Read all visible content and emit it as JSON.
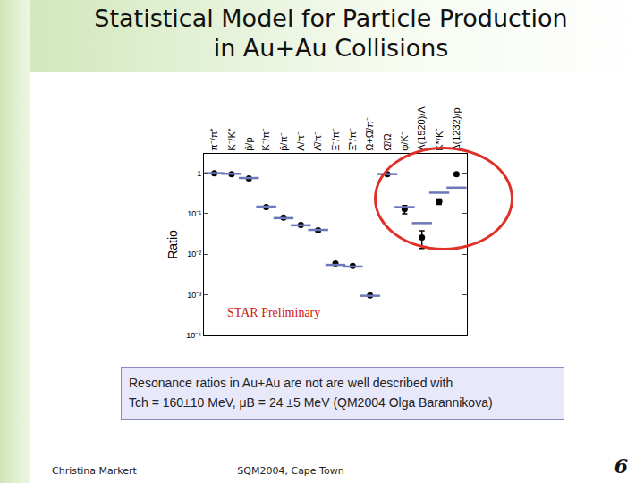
{
  "slide": {
    "title": [
      "Statistical Model for Particle Production",
      "in Au+Au Collisions"
    ],
    "caption": [
      "Resonance ratios in Au+Au  are not are well described with",
      "Tch = 160±10 MeV, μB = 24 ±5 MeV   (QM2004 Olga Barannikova)"
    ],
    "footer_left": "Christina Markert",
    "footer_center": "SQM2004, Cape Town",
    "page": 6
  },
  "chart_data": {
    "type": "scatter",
    "ylabel": "Ratio",
    "log": "y",
    "categories": [
      "π⁻/π⁺",
      "K⁻/K⁺",
      "p̄/p",
      "K⁻/π⁻",
      "p̄/π⁻",
      "Λ/π⁻",
      "Λ̄/π⁻",
      "Ξ⁻/π⁻",
      "Ξ̄⁺/π⁻",
      "Ω+Ω̄/π⁻",
      "Ω̄/Ω",
      "φ/K⁻",
      "Λ(1520)/Λ",
      "K*/K⁻",
      "Δ(1232)/p"
    ],
    "series": [
      {
        "color": "#000000",
        "marker": "circle",
        "values": [
          1.0,
          0.95,
          0.74,
          0.146,
          0.08,
          0.053,
          0.039,
          0.006,
          0.0052,
          0.00097,
          0.95,
          0.13,
          0.026,
          0.2,
          0.95
        ],
        "errors": [
          null,
          null,
          null,
          null,
          null,
          null,
          null,
          null,
          null,
          null,
          null,
          0.03,
          0.012,
          0.03,
          null
        ]
      },
      {
        "color": "#6b77b8",
        "marker": "dash",
        "values": [
          1.0,
          0.97,
          0.76,
          0.15,
          0.078,
          0.052,
          0.04,
          0.0055,
          0.005,
          0.00095,
          0.95,
          0.146,
          0.059,
          0.33,
          0.44
        ]
      }
    ],
    "ylim": [
      0.0001,
      3
    ],
    "yticks": [
      {
        "value": 0.0001,
        "label": "10⁻⁴"
      },
      {
        "value": 0.001,
        "label": "10⁻³"
      },
      {
        "value": 0.01,
        "label": "10⁻²"
      },
      {
        "value": 0.1,
        "label": "10⁻¹"
      },
      1
    ],
    "annotations": [
      "STAR Preliminary"
    ]
  }
}
